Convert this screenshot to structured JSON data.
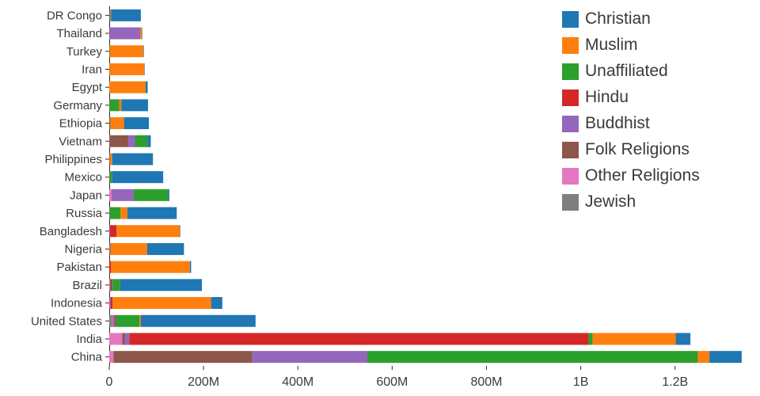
{
  "chart_data": {
    "type": "bar",
    "orientation": "horizontal",
    "stacked": true,
    "title": "",
    "xlabel": "",
    "ylabel": "",
    "unit": "millions of people",
    "x_max": 1360,
    "grid": false,
    "legend_position": "top-right",
    "stack_note": "segments drawn from baseline in reverse legend order (Jewish first, Christian last)",
    "x_ticks": [
      {
        "v": 0,
        "label": "0"
      },
      {
        "v": 200,
        "label": "200M"
      },
      {
        "v": 400,
        "label": "400M"
      },
      {
        "v": 600,
        "label": "600M"
      },
      {
        "v": 800,
        "label": "800M"
      },
      {
        "v": 1000,
        "label": "1B"
      },
      {
        "v": 1200,
        "label": "1.2B"
      }
    ],
    "categories": [
      "DR Congo",
      "Thailand",
      "Turkey",
      "Iran",
      "Egypt",
      "Germany",
      "Ethiopia",
      "Vietnam",
      "Philippines",
      "Mexico",
      "Japan",
      "Russia",
      "Bangladesh",
      "Nigeria",
      "Pakistan",
      "Brazil",
      "Indonesia",
      "United States",
      "India",
      "China"
    ],
    "series": [
      {
        "name": "Christian",
        "color": "#1f77b4",
        "values": [
          63.2,
          0.6,
          0.3,
          0.3,
          4.3,
          56.5,
          52.6,
          7.2,
          86.4,
          107.8,
          2.9,
          104.8,
          0.7,
          78.1,
          2.8,
          173.3,
          23.7,
          243.1,
          31.1,
          68.4
        ]
      },
      {
        "name": "Muslim",
        "color": "#ff7f0e",
        "values": [
          1.0,
          3.8,
          71.3,
          73.6,
          77.0,
          4.8,
          28.7,
          0.2,
          4.7,
          0.1,
          0.2,
          14.3,
          134.4,
          77.3,
          167.4,
          0.2,
          209.1,
          2.8,
          176.2,
          24.7
        ]
      },
      {
        "name": "Unaffiliated",
        "color": "#2ca02c",
        "values": [
          1.3,
          0.2,
          0.9,
          0.1,
          0.2,
          20.3,
          0.5,
          26.0,
          0.1,
          5.3,
          72.1,
          23.2,
          0.2,
          0.7,
          0.1,
          15.4,
          0.2,
          50.8,
          8.7,
          700.7
        ]
      },
      {
        "name": "Hindu",
        "color": "#d62728",
        "values": [
          0,
          0.1,
          0,
          0.02,
          0,
          0.1,
          0,
          0.1,
          0,
          0,
          0.03,
          0.04,
          13.5,
          0.03,
          3.3,
          0,
          4.1,
          1.8,
          973.8,
          0.02
        ]
      },
      {
        "name": "Buddhist",
        "color": "#9467bd",
        "values": [
          0,
          64.4,
          0.03,
          0,
          0,
          0.2,
          0.01,
          14.4,
          0.04,
          0.1,
          45.8,
          0.2,
          0.9,
          0.01,
          0,
          0.5,
          1.7,
          3.6,
          9.3,
          244.1
        ]
      },
      {
        "name": "Folk Religions",
        "color": "#8c564b",
        "values": [
          1.5,
          0.6,
          0.2,
          0.03,
          0.01,
          0.1,
          2.1,
          39.9,
          1.4,
          0.9,
          0.5,
          0.3,
          0.8,
          1.4,
          0.03,
          5.5,
          0.7,
          0.6,
          5.8,
          294.3
        ]
      },
      {
        "name": "Other Religions",
        "color": "#e377c2",
        "values": [
          0.01,
          0.01,
          0.01,
          0.4,
          0.01,
          0.1,
          0.04,
          0.3,
          0.02,
          0.1,
          5.9,
          0.1,
          0.01,
          0.9,
          0.02,
          1.5,
          0.3,
          1.9,
          27.6,
          9.1
        ]
      },
      {
        "name": "Jewish",
        "color": "#7f7f7f",
        "values": [
          0,
          0,
          0.02,
          0.01,
          0,
          0.2,
          0,
          0,
          0,
          0.1,
          0,
          0.2,
          0,
          0,
          0,
          0.1,
          0,
          5.7,
          0,
          0
        ]
      }
    ]
  }
}
